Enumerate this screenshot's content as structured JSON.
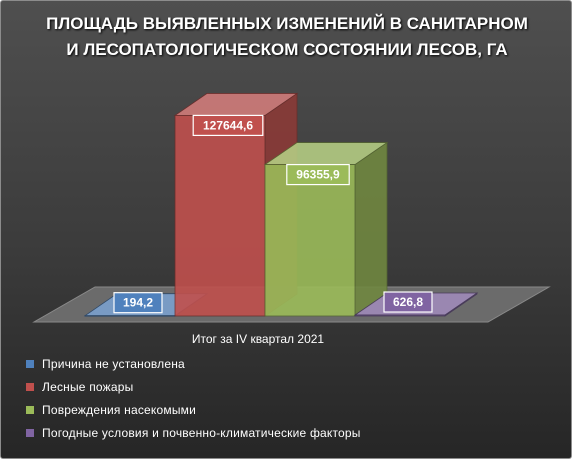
{
  "chart_data": {
    "type": "bar",
    "title": "ПЛОЩАДЬ ВЫЯВЛЕННЫХ ИЗМЕНЕНИЙ В САНИТАРНОМ И ЛЕСОПАТОЛОГИЧЕСКОМ СОСТОЯНИИ ЛЕСОВ, ГА",
    "title_lines": [
      "ПЛОЩАДЬ ВЫЯВЛЕННЫХ ИЗМЕНЕНИЙ В САНИТАРНОМ",
      "И ЛЕСОПАТОЛОГИЧЕСКОМ СОСТОЯНИИ ЛЕСОВ, ГА"
    ],
    "categories": [
      "Итог за IV квартал 2021"
    ],
    "series": [
      {
        "name": "Причина не установлена",
        "values": [
          194.2
        ],
        "label": "194,2",
        "color": "#4f81bd"
      },
      {
        "name": "Лесные пожары",
        "values": [
          127644.6
        ],
        "label": "127644,6",
        "color": "#c0504d"
      },
      {
        "name": "Повреждения насекомыми",
        "values": [
          96355.9
        ],
        "label": "96355,9",
        "color": "#9bbb59"
      },
      {
        "name": "Погодные условия и почвенно-климатические факторы",
        "values": [
          626.8
        ],
        "label": "626,8",
        "color": "#8064a2"
      }
    ],
    "ylim": [
      0,
      140000
    ],
    "legend_position": "bottom-left",
    "grid": false
  }
}
